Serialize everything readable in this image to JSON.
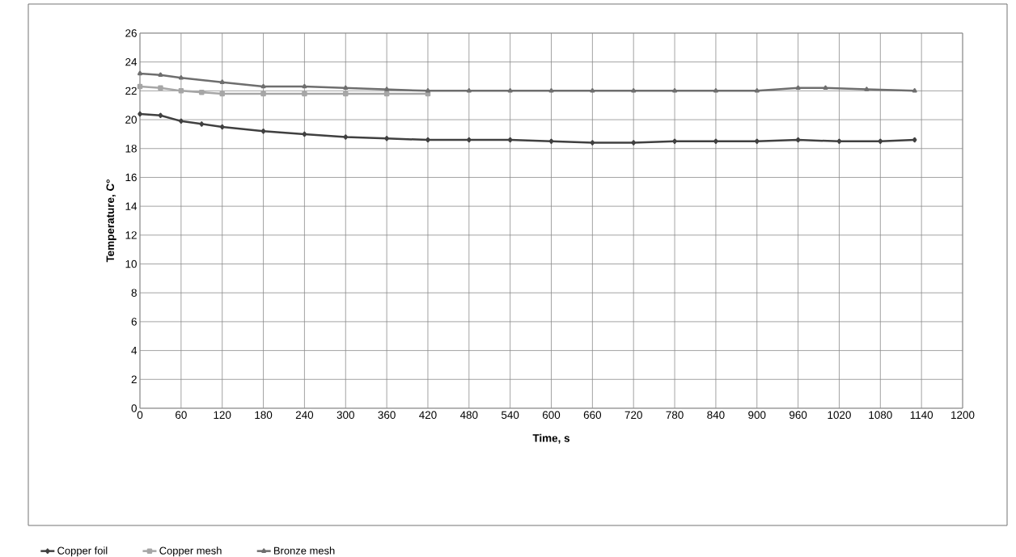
{
  "chart_data": {
    "type": "line",
    "xlabel": "Time, s",
    "ylabel": "Temperature, C°",
    "xlim": [
      0,
      1200
    ],
    "ylim": [
      0,
      26
    ],
    "xticks": [
      0,
      60,
      120,
      180,
      240,
      300,
      360,
      420,
      480,
      540,
      600,
      660,
      720,
      780,
      840,
      900,
      960,
      1020,
      1080,
      1140,
      1200
    ],
    "yticks": [
      0,
      2,
      4,
      6,
      8,
      10,
      12,
      14,
      16,
      18,
      20,
      22,
      24,
      26
    ],
    "grid": true,
    "legend": "bottom",
    "line_style": "solid",
    "series": [
      {
        "name": "Copper  foil",
        "color": "#404040",
        "marker": "diamond",
        "x": [
          0,
          30,
          60,
          90,
          120,
          180,
          240,
          300,
          360,
          420,
          480,
          540,
          600,
          660,
          720,
          780,
          840,
          900,
          960,
          1020,
          1080,
          1130
        ],
        "values": [
          20.4,
          20.3,
          19.9,
          19.7,
          19.5,
          19.2,
          19.0,
          18.8,
          18.7,
          18.6,
          18.6,
          18.6,
          18.5,
          18.4,
          18.4,
          18.5,
          18.5,
          18.5,
          18.6,
          18.5,
          18.5,
          18.6
        ]
      },
      {
        "name": "Copper mesh",
        "color": "#a6a6a6",
        "marker": "square",
        "x": [
          0,
          30,
          60,
          90,
          120,
          180,
          240,
          300,
          360,
          420
        ],
        "values": [
          22.3,
          22.2,
          22.0,
          21.9,
          21.8,
          21.8,
          21.8,
          21.8,
          21.8,
          21.8
        ]
      },
      {
        "name": "Bronze mesh",
        "color": "#6e6e6e",
        "marker": "triangle",
        "x": [
          0,
          30,
          60,
          120,
          180,
          240,
          300,
          360,
          420,
          480,
          540,
          600,
          660,
          720,
          780,
          840,
          900,
          960,
          1000,
          1060,
          1130
        ],
        "values": [
          23.2,
          23.1,
          22.9,
          22.6,
          22.3,
          22.3,
          22.2,
          22.1,
          22.0,
          22.0,
          22.0,
          22.0,
          22.0,
          22.0,
          22.0,
          22.0,
          22.0,
          22.2,
          22.2,
          22.1,
          22.0
        ]
      }
    ]
  }
}
